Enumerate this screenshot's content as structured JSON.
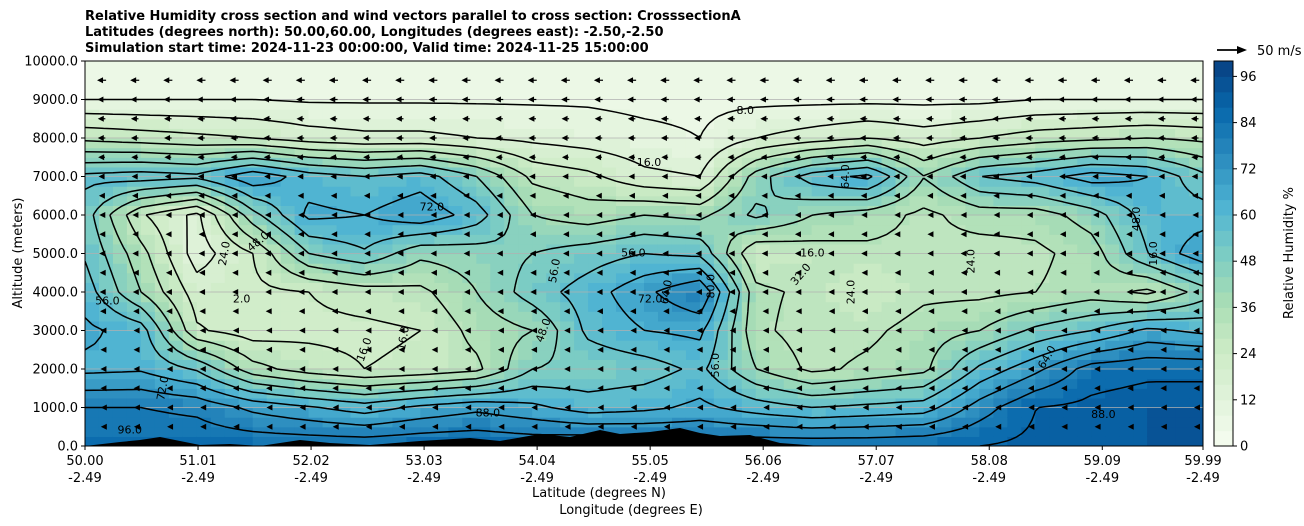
{
  "chart_data": {
    "type": "heatmap",
    "title_lines": [
      "Relative Humidity cross section and wind vectors parallel to cross section: CrosssectionA",
      "Latitudes (degrees north): 50.00,60.00, Longitudes (degrees east): -2.50,-2.50",
      "Simulation start time: 2024-11-23 00:00:00, Valid time: 2024-11-25 15:00:00"
    ],
    "xlabel_lat": "Latitude (degrees N)",
    "xlabel_lon": "Longitude (degrees E)",
    "ylabel": "Altitude (meters)",
    "colorbar_label": "Relative Humidity %",
    "quiver_key_label": "50 m/s",
    "xlim": [
      50.0,
      59.99
    ],
    "ylim": [
      0,
      10000
    ],
    "x_ticks": [
      {
        "value": 50.0,
        "lat": "50.00",
        "lon": "-2.49"
      },
      {
        "value": 51.01,
        "lat": "51.01",
        "lon": "-2.49"
      },
      {
        "value": 52.02,
        "lat": "52.02",
        "lon": "-2.49"
      },
      {
        "value": 53.03,
        "lat": "53.03",
        "lon": "-2.49"
      },
      {
        "value": 54.04,
        "lat": "54.04",
        "lon": "-2.49"
      },
      {
        "value": 55.05,
        "lat": "55.05",
        "lon": "-2.49"
      },
      {
        "value": 56.06,
        "lat": "56.06",
        "lon": "-2.49"
      },
      {
        "value": 57.07,
        "lat": "57.07",
        "lon": "-2.49"
      },
      {
        "value": 58.08,
        "lat": "58.08",
        "lon": "-2.49"
      },
      {
        "value": 59.09,
        "lat": "59.09",
        "lon": "-2.49"
      },
      {
        "value": 59.99,
        "lat": "59.99",
        "lon": "-2.49"
      }
    ],
    "y_ticks": [
      {
        "value": 0,
        "label": "0.0"
      },
      {
        "value": 1000,
        "label": "1000.0"
      },
      {
        "value": 2000,
        "label": "2000.0"
      },
      {
        "value": 3000,
        "label": "3000.0"
      },
      {
        "value": 4000,
        "label": "4000.0"
      },
      {
        "value": 5000,
        "label": "5000.0"
      },
      {
        "value": 6000,
        "label": "6000.0"
      },
      {
        "value": 7000,
        "label": "7000.0"
      },
      {
        "value": 8000,
        "label": "8000.0"
      },
      {
        "value": 9000,
        "label": "9000.0"
      },
      {
        "value": 10000,
        "label": "10000.0"
      }
    ],
    "colorbar_range": [
      0,
      100
    ],
    "colorbar_ticks": [
      {
        "value": 0,
        "label": "0"
      },
      {
        "value": 12,
        "label": "12"
      },
      {
        "value": 24,
        "label": "24"
      },
      {
        "value": 36,
        "label": "36"
      },
      {
        "value": 48,
        "label": "48"
      },
      {
        "value": 60,
        "label": "60"
      },
      {
        "value": 72,
        "label": "72"
      },
      {
        "value": 84,
        "label": "84"
      },
      {
        "value": 96,
        "label": "96"
      }
    ],
    "colormap": "GnBu",
    "colormap_stops": [
      "#f7fcf0",
      "#e0f3db",
      "#ccebc5",
      "#a8ddb5",
      "#7bccc4",
      "#4eb3d3",
      "#2b8cbe",
      "#0868ac",
      "#084081"
    ],
    "grid_y": true,
    "rh_field": [
      {
        "x": 50.0,
        "rh": [
          85,
          80,
          62,
          66,
          60,
          55,
          52,
          58,
          30,
          8,
          5
        ]
      },
      {
        "x": 50.5,
        "rh": [
          86,
          80,
          63,
          60,
          40,
          35,
          25,
          60,
          28,
          8,
          5
        ]
      },
      {
        "x": 51.0,
        "rh": [
          86,
          78,
          55,
          25,
          20,
          12,
          14,
          58,
          26,
          8,
          5
        ]
      },
      {
        "x": 51.5,
        "rh": [
          86,
          70,
          35,
          20,
          22,
          24,
          45,
          70,
          24,
          8,
          5
        ]
      },
      {
        "x": 52.0,
        "rh": [
          86,
          65,
          28,
          22,
          24,
          48,
          66,
          60,
          20,
          7,
          5
        ]
      },
      {
        "x": 52.5,
        "rh": [
          86,
          60,
          24,
          22,
          28,
          55,
          64,
          56,
          18,
          7,
          5
        ]
      },
      {
        "x": 53.0,
        "rh": [
          87,
          66,
          26,
          24,
          30,
          42,
          70,
          60,
          18,
          7,
          5
        ]
      },
      {
        "x": 53.5,
        "rh": [
          87,
          70,
          30,
          35,
          40,
          44,
          60,
          48,
          16,
          7,
          5
        ]
      },
      {
        "x": 54.0,
        "rh": [
          86,
          66,
          48,
          40,
          52,
          48,
          40,
          30,
          14,
          7,
          5
        ]
      },
      {
        "x": 54.5,
        "rh": [
          88,
          60,
          50,
          58,
          60,
          52,
          36,
          26,
          12,
          7,
          5
        ]
      },
      {
        "x": 55.0,
        "rh": [
          86,
          62,
          52,
          64,
          70,
          56,
          40,
          18,
          10,
          6,
          5
        ]
      },
      {
        "x": 55.5,
        "rh": [
          84,
          66,
          58,
          66,
          80,
          54,
          38,
          16,
          8,
          6,
          5
        ]
      },
      {
        "x": 56.0,
        "rh": [
          86,
          60,
          40,
          34,
          34,
          24,
          50,
          44,
          16,
          6,
          5
        ]
      },
      {
        "x": 56.5,
        "rh": [
          86,
          56,
          30,
          28,
          30,
          28,
          40,
          60,
          20,
          6,
          5
        ]
      },
      {
        "x": 57.0,
        "rh": [
          86,
          58,
          34,
          30,
          24,
          30,
          36,
          66,
          24,
          6,
          5
        ]
      },
      {
        "x": 57.5,
        "rh": [
          87,
          60,
          38,
          36,
          30,
          30,
          30,
          40,
          20,
          6,
          5
        ]
      },
      {
        "x": 58.0,
        "rh": [
          88,
          76,
          58,
          40,
          30,
          28,
          36,
          56,
          24,
          6,
          5
        ]
      },
      {
        "x": 58.5,
        "rh": [
          90,
          88,
          70,
          50,
          32,
          30,
          36,
          60,
          28,
          8,
          5
        ]
      },
      {
        "x": 59.0,
        "rh": [
          92,
          90,
          84,
          56,
          36,
          36,
          44,
          68,
          30,
          8,
          5
        ]
      },
      {
        "x": 59.5,
        "rh": [
          92,
          92,
          86,
          66,
          30,
          56,
          60,
          64,
          32,
          8,
          5
        ]
      },
      {
        "x": 59.99,
        "rh": [
          92,
          92,
          86,
          62,
          44,
          70,
          60,
          50,
          30,
          8,
          5
        ]
      }
    ],
    "contour_labels": [
      {
        "x": 50.2,
        "y": 3750,
        "text": "56.0",
        "rot": 0
      },
      {
        "x": 51.4,
        "y": 3800,
        "text": "2.0",
        "rot": 0
      },
      {
        "x": 53.1,
        "y": 6200,
        "text": "72.0",
        "rot": 0
      },
      {
        "x": 55.9,
        "y": 8700,
        "text": "8.0",
        "rot": 0
      },
      {
        "x": 55.04,
        "y": 7350,
        "text": "16.0",
        "rot": 0
      },
      {
        "x": 55.05,
        "y": 3800,
        "text": "72.0",
        "rot": 0
      },
      {
        "x": 56.5,
        "y": 5000,
        "text": "16.0",
        "rot": 0
      },
      {
        "x": 56.4,
        "y": 4450,
        "text": "32.0",
        "rot": -50
      },
      {
        "x": 50.7,
        "y": 1500,
        "text": "72.0",
        "rot": -80
      },
      {
        "x": 51.25,
        "y": 5000,
        "text": "24.0",
        "rot": -80
      },
      {
        "x": 51.55,
        "y": 5300,
        "text": "48.0",
        "rot": -40
      },
      {
        "x": 52.5,
        "y": 2500,
        "text": "16.0",
        "rot": -70
      },
      {
        "x": 52.85,
        "y": 2800,
        "text": "16.0",
        "rot": -80
      },
      {
        "x": 54.1,
        "y": 3000,
        "text": "48.0",
        "rot": -70
      },
      {
        "x": 54.2,
        "y": 4550,
        "text": "56.0",
        "rot": -80
      },
      {
        "x": 55.6,
        "y": 4150,
        "text": "80.0",
        "rot": -90
      },
      {
        "x": 55.2,
        "y": 4000,
        "text": "64.0",
        "rot": -80
      },
      {
        "x": 55.64,
        "y": 2100,
        "text": "56.0",
        "rot": -90
      },
      {
        "x": 56.8,
        "y": 7000,
        "text": "64.0",
        "rot": -90
      },
      {
        "x": 56.85,
        "y": 4000,
        "text": "24.0",
        "rot": -90
      },
      {
        "x": 57.92,
        "y": 4800,
        "text": "24.0",
        "rot": -90
      },
      {
        "x": 59.1,
        "y": 800,
        "text": "88.0",
        "rot": 0
      },
      {
        "x": 59.4,
        "y": 5900,
        "text": "48.0",
        "rot": -90
      },
      {
        "x": 59.55,
        "y": 5000,
        "text": "16.0",
        "rot": -90
      },
      {
        "x": 53.6,
        "y": 850,
        "text": "88.0",
        "rot": 0
      },
      {
        "x": 50.4,
        "y": 400,
        "text": "96.0",
        "rot": 0
      },
      {
        "x": 58.6,
        "y": 2300,
        "text": "64.0",
        "rot": -60
      },
      {
        "x": 54.9,
        "y": 5000,
        "text": "56.0",
        "rot": 0
      }
    ],
    "wind_vectors": {
      "x_step": 0.296,
      "levels": [
        {
          "z": 500,
          "u": -2
        },
        {
          "z": 1000,
          "u": -2
        },
        {
          "z": 1500,
          "u": -3
        },
        {
          "z": 2000,
          "u": -3
        },
        {
          "z": 2500,
          "u": -3
        },
        {
          "z": 3000,
          "u": -3
        },
        {
          "z": 3500,
          "u": -4
        },
        {
          "z": 4000,
          "u": -5
        },
        {
          "z": 4500,
          "u": -5
        },
        {
          "z": 5000,
          "u": -6
        },
        {
          "z": 5500,
          "u": -6
        },
        {
          "z": 6000,
          "u": -6
        },
        {
          "z": 6500,
          "u": -7
        },
        {
          "z": 7000,
          "u": -8
        },
        {
          "z": 7500,
          "u": -9
        },
        {
          "z": 8000,
          "u": -10
        },
        {
          "z": 8500,
          "u": -10
        },
        {
          "z": 9000,
          "u": -11
        },
        {
          "z": 9500,
          "u": -12
        }
      ]
    }
  }
}
